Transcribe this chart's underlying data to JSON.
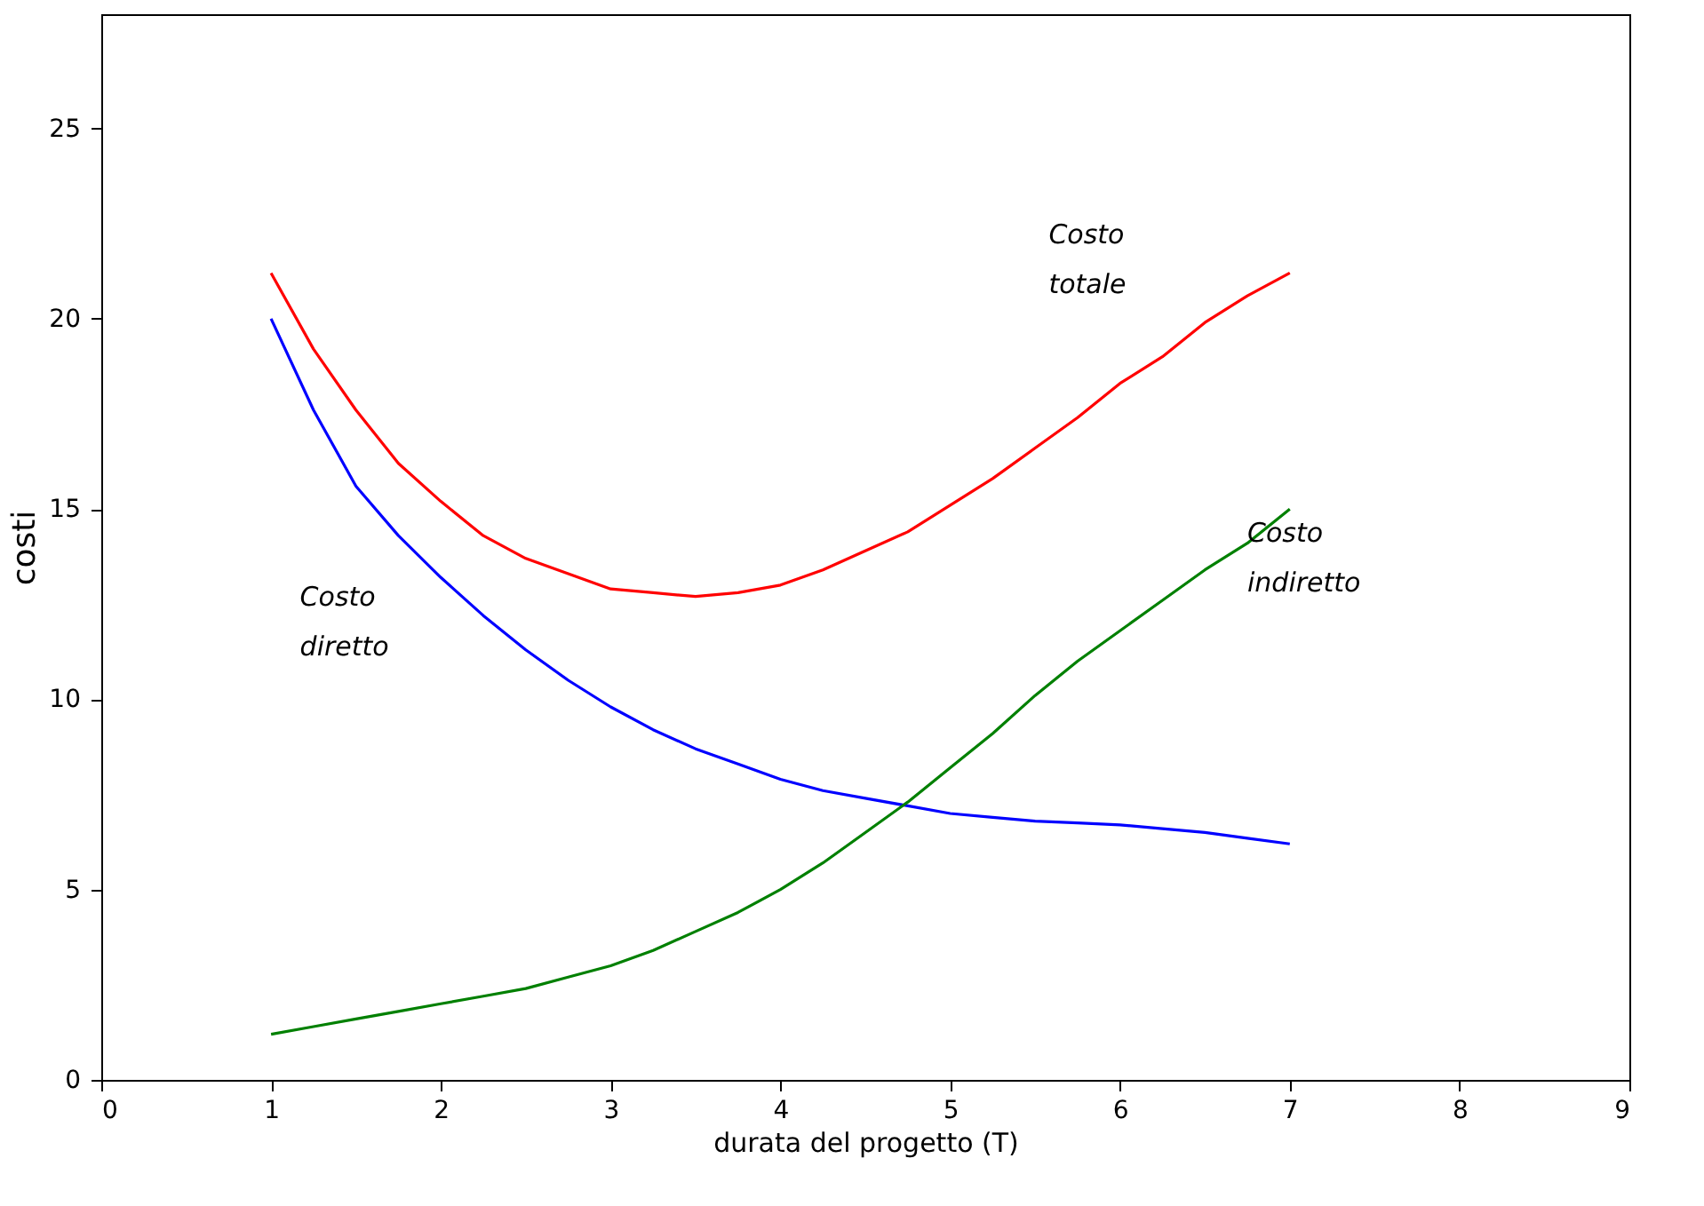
{
  "chart_data": {
    "type": "line",
    "xlabel": "durata del progetto (T)",
    "ylabel": "costi",
    "x": [
      1,
      1.25,
      1.5,
      1.75,
      2,
      2.25,
      2.5,
      2.75,
      3,
      3.25,
      3.5,
      3.75,
      4,
      4.25,
      4.5,
      4.75,
      5,
      5.25,
      5.5,
      5.75,
      6,
      6.25,
      6.5,
      6.75,
      7
    ],
    "series": [
      {
        "name": "Costo totale",
        "color": "#ff0000",
        "values": [
          21.2,
          19.2,
          17.6,
          16.2,
          15.2,
          14.3,
          13.7,
          13.3,
          12.9,
          12.8,
          12.7,
          12.8,
          13.0,
          13.4,
          13.9,
          14.4,
          15.1,
          15.8,
          16.6,
          17.4,
          18.3,
          19.0,
          19.9,
          20.6,
          21.2
        ]
      },
      {
        "name": "Costo diretto",
        "color": "#0000ff",
        "values": [
          20.0,
          17.6,
          15.6,
          14.3,
          13.2,
          12.2,
          11.3,
          10.5,
          9.8,
          9.2,
          8.7,
          8.3,
          7.9,
          7.6,
          7.4,
          7.2,
          7.0,
          6.9,
          6.8,
          6.75,
          6.7,
          6.6,
          6.5,
          6.35,
          6.2
        ]
      },
      {
        "name": "Costo indiretto",
        "color": "#008000",
        "values": [
          1.2,
          1.4,
          1.6,
          1.8,
          2.0,
          2.2,
          2.4,
          2.7,
          3.0,
          3.4,
          3.9,
          4.4,
          5.0,
          5.7,
          6.5,
          7.3,
          8.2,
          9.1,
          10.1,
          11.0,
          11.8,
          12.6,
          13.4,
          14.1,
          15.0
        ]
      }
    ],
    "xlim": [
      0,
      9
    ],
    "xticks": [
      0,
      1,
      2,
      3,
      4,
      5,
      6,
      7,
      8,
      9
    ],
    "ylim": [
      0,
      28
    ],
    "yticks": [
      0,
      5,
      10,
      15,
      20,
      25
    ],
    "grid": false,
    "marker": "none",
    "line_style": "solid"
  }
}
